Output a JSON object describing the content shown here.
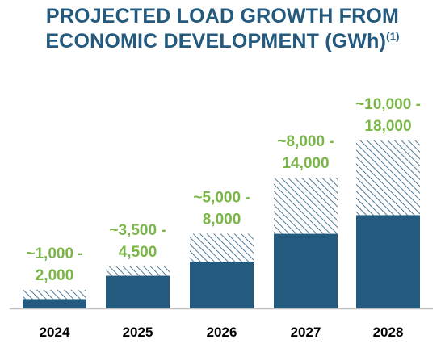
{
  "title": {
    "line1": "PROJECTED LOAD GROWTH FROM",
    "line2": "ECONOMIC DEVELOPMENT (GWh)",
    "superscript": "(1)"
  },
  "colors": {
    "title": "#245a7e",
    "solid_bar": "#245a7e",
    "hatch": "#245a7e",
    "range_label": "#7ab648",
    "axis": "#bfbfbf",
    "category_label": "#000000"
  },
  "chart_data": {
    "type": "bar",
    "stacked": true,
    "categories": [
      "2024",
      "2025",
      "2026",
      "2027",
      "2028"
    ],
    "series": [
      {
        "style": "solid",
        "values": [
          1000,
          3500,
          5000,
          8000,
          10000
        ]
      },
      {
        "style": "hatched",
        "values": [
          1000,
          1000,
          3000,
          6000,
          8000
        ]
      }
    ],
    "range_labels": [
      [
        "~1,000 -",
        "2,000"
      ],
      [
        "~3,500 -",
        "4,500"
      ],
      [
        "~5,000 -",
        "8,000"
      ],
      [
        "~8,000 -",
        "14,000"
      ],
      [
        "~10,000 -",
        "18,000"
      ]
    ],
    "title": "PROJECTED LOAD GROWTH FROM ECONOMIC DEVELOPMENT (GWh)(1)",
    "xlabel": "",
    "ylabel": "",
    "ylim": [
      0,
      18000
    ],
    "grid": false,
    "legend": "none"
  }
}
